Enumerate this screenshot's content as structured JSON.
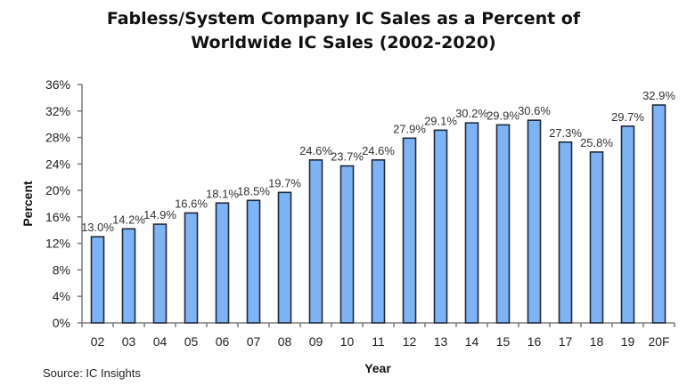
{
  "chart_data": {
    "type": "bar",
    "title_line1": "Fabless/System Company IC Sales as a Percent of",
    "title_line2": "Worldwide IC Sales (2002-2020)",
    "xlabel": "Year",
    "ylabel": "Percent",
    "ylim": [
      0,
      36
    ],
    "yticks": [
      0,
      4,
      8,
      12,
      16,
      20,
      24,
      28,
      32,
      36
    ],
    "ytick_labels": [
      "0%",
      "4%",
      "8%",
      "12%",
      "16%",
      "20%",
      "24%",
      "28%",
      "32%",
      "36%"
    ],
    "categories": [
      "02",
      "03",
      "04",
      "05",
      "06",
      "07",
      "08",
      "09",
      "10",
      "11",
      "12",
      "13",
      "14",
      "15",
      "16",
      "17",
      "18",
      "19",
      "20F"
    ],
    "values": [
      13.0,
      14.2,
      14.9,
      16.6,
      18.1,
      18.5,
      19.7,
      24.6,
      23.7,
      24.6,
      27.9,
      29.1,
      30.2,
      29.9,
      30.6,
      27.3,
      25.8,
      29.7,
      32.9
    ],
    "data_labels": [
      "13.0%",
      "14.2%",
      "14.9%",
      "16.6%",
      "18.1%",
      "18.5%",
      "19.7%",
      "24.6%",
      "23.7%",
      "24.6%",
      "27.9%",
      "29.1%",
      "30.2%",
      "29.9%",
      "30.6%",
      "27.3%",
      "25.8%",
      "29.7%",
      "32.9%"
    ],
    "bar_color": "#7eb4f5",
    "bar_edge_color": "#1f2a3a",
    "grid": false,
    "legend": "none",
    "source": "Source: IC Insights"
  }
}
